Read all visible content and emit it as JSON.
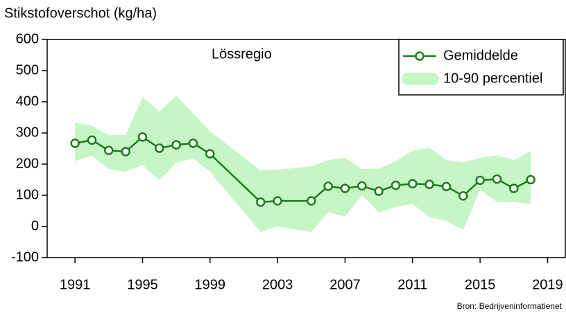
{
  "chart_data": {
    "type": "line",
    "title": "Stikstofoverschot (kg/ha)",
    "annotation": "Lössregio",
    "source": "Bron: Bedrijveninformatienet",
    "x": [
      1991,
      1992,
      1993,
      1994,
      1995,
      1996,
      1997,
      1998,
      1999,
      2002,
      2003,
      2005,
      2006,
      2007,
      2008,
      2009,
      2010,
      2011,
      2012,
      2013,
      2014,
      2015,
      2016,
      2017,
      2018
    ],
    "series": [
      {
        "name": "Gemiddelde",
        "color": "#1a7d1a",
        "values": [
          267,
          277,
          244,
          240,
          287,
          251,
          262,
          267,
          233,
          78,
          82,
          82,
          129,
          122,
          130,
          113,
          132,
          137,
          135,
          128,
          98,
          148,
          152,
          122,
          150
        ]
      },
      {
        "name": "10-90 percentiel",
        "color": "#c6f6c6",
        "upper": [
          333,
          323,
          293,
          293,
          415,
          368,
          420,
          363,
          305,
          180,
          182,
          193,
          213,
          220,
          185,
          185,
          210,
          243,
          252,
          213,
          205,
          220,
          228,
          213,
          243
        ],
        "lower": [
          210,
          227,
          185,
          175,
          197,
          148,
          205,
          218,
          175,
          -18,
          0,
          -18,
          45,
          32,
          100,
          45,
          63,
          72,
          30,
          18,
          -12,
          118,
          78,
          78,
          72
        ]
      }
    ],
    "xlim": [
      1989.35,
      2020.05
    ],
    "ylim": [
      -100,
      600
    ],
    "xticks": [
      1991,
      1995,
      1999,
      2003,
      2007,
      2011,
      2015,
      2019
    ],
    "yticks": [
      -100,
      0,
      100,
      200,
      300,
      400,
      500,
      600
    ],
    "legend": "upper right"
  }
}
